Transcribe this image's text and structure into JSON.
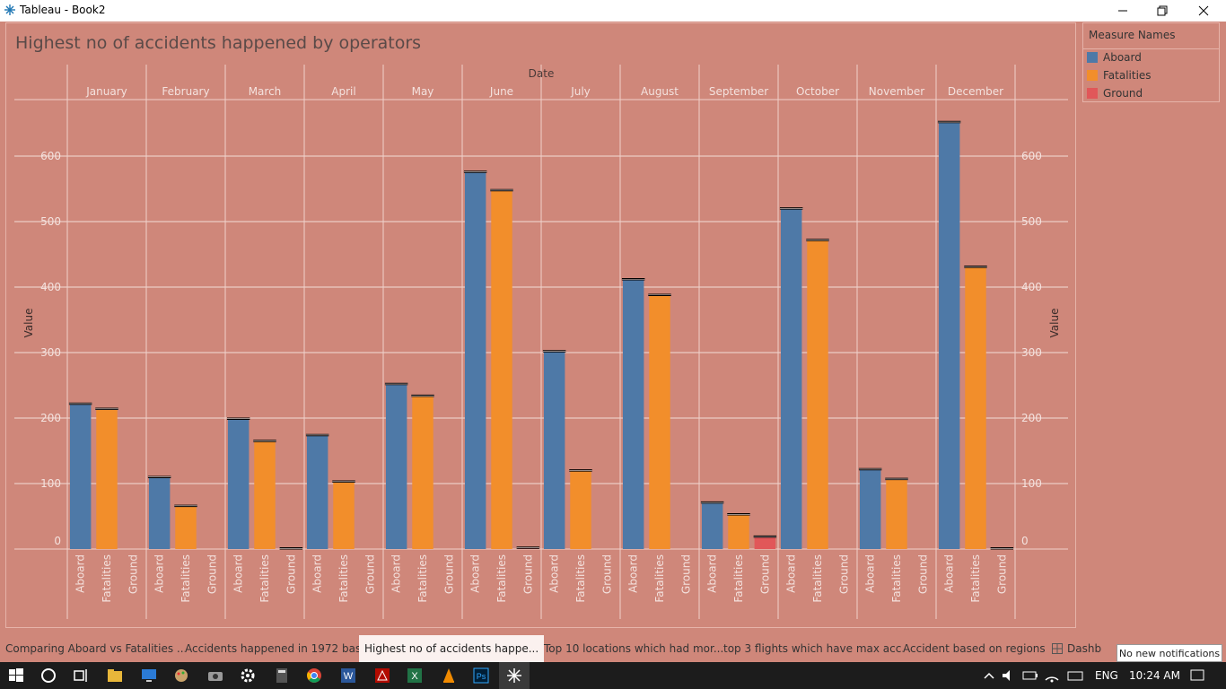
{
  "window": {
    "title": "Tableau - Book2"
  },
  "sheet": {
    "title": "Highest no of accidents happened by operators"
  },
  "legend": {
    "title": "Measure Names",
    "items": [
      {
        "label": "Aboard",
        "color": "#4e79a7"
      },
      {
        "label": "Fatalities",
        "color": "#f28e2b"
      },
      {
        "label": "Ground",
        "color": "#e15759"
      }
    ]
  },
  "chart_data": {
    "type": "bar",
    "column_header": "Date",
    "ylabel": "Value",
    "ylim": [
      0,
      650
    ],
    "yticks": [
      0,
      100,
      200,
      300,
      400,
      500,
      600
    ],
    "months": [
      "January",
      "February",
      "March",
      "April",
      "May",
      "June",
      "July",
      "August",
      "September",
      "October",
      "November",
      "December"
    ],
    "measures": [
      "Aboard",
      "Fatalities",
      "Ground"
    ],
    "series": [
      {
        "name": "Aboard",
        "values": [
          222,
          110,
          199,
          174,
          252,
          576,
          302,
          412,
          71,
          520,
          122,
          652
        ]
      },
      {
        "name": "Fatalities",
        "values": [
          214,
          66,
          165,
          103,
          234,
          548,
          120,
          388,
          53,
          472,
          107,
          431
        ]
      },
      {
        "name": "Ground",
        "values": [
          0,
          0,
          1,
          0,
          0,
          2,
          0,
          0,
          19,
          0,
          0,
          1
        ]
      }
    ]
  },
  "tabs": [
    {
      "label": "Comparing Aboard vs Fatalities ...",
      "active": false
    },
    {
      "label": "Accidents happened in 1972 bas...",
      "active": false
    },
    {
      "label": "Highest no of accidents happe...",
      "active": true
    },
    {
      "label": "Top 10 locations which had mor...",
      "active": false
    },
    {
      "label": "top 3 flights which have max acc...",
      "active": false
    },
    {
      "label": "Accident based on regions",
      "active": false
    },
    {
      "label": "Dashb",
      "active": false
    }
  ],
  "notification": "No new notifications",
  "taskbar": {
    "language": "ENG",
    "time": "10:24 AM"
  }
}
